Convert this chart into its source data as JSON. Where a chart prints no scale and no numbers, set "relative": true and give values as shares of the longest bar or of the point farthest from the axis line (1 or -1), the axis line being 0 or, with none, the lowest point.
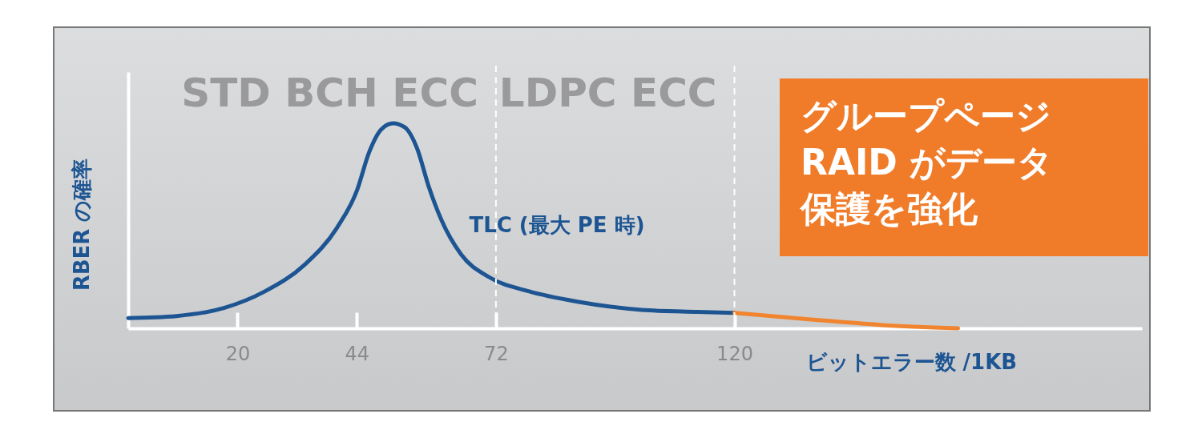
{
  "chart_data": {
    "type": "line",
    "relative": true,
    "xlabel": "ビットエラー数 /1KB",
    "ylabel": "RBER の確率",
    "xlim": [
      -2,
      202
    ],
    "xticks": [
      20,
      44,
      72,
      120
    ],
    "grid": false,
    "legend": false,
    "marker": "none",
    "line_style": "solid",
    "series": [
      {
        "name": "TLC (最大 PE 時)",
        "color": "#1d5592",
        "x": [
          -2,
          7.7,
          17.4,
          25.5,
          33.5,
          40,
          44,
          46.5,
          48.9,
          51.3,
          53.7,
          56.1,
          58.5,
          61,
          65,
          70.6,
          78.7,
          88.4,
          101.3,
          112.6,
          120
        ],
        "values": [
          0.05,
          0.06,
          0.1,
          0.18,
          0.31,
          0.49,
          0.67,
          0.86,
          0.97,
          1,
          0.98,
          0.88,
          0.69,
          0.53,
          0.36,
          0.25,
          0.18,
          0.13,
          0.09,
          0.08,
          0.075
        ]
      },
      {
        "color": "#f0842f",
        "x": [
          120,
          133.5,
          149.7,
          165
        ],
        "values": [
          0.075,
          0.047,
          0.016,
          0
        ]
      }
    ],
    "ref_lines": [
      {
        "axis": "x",
        "value": 72,
        "color": "#ffffff",
        "line_style": "dashed"
      },
      {
        "axis": "x",
        "value": 120,
        "color": "#ffffff",
        "line_style": "dashed"
      }
    ],
    "annotations": [
      "STD BCH ECC",
      "LDPC ECC",
      "グループページRAID がデータ保護を強化"
    ]
  }
}
